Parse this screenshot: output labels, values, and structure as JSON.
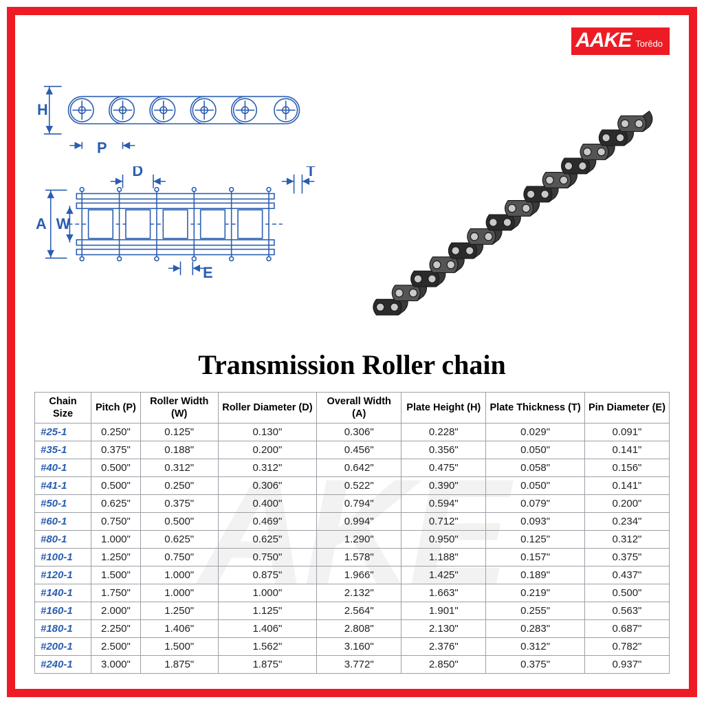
{
  "brand": {
    "name": "AAKE",
    "subname": "Torēdo",
    "logo_bg": "#ed1c24",
    "logo_fg": "#ffffff"
  },
  "frame_border_color": "#ed1c24",
  "title": "Transmission Roller chain",
  "diagram": {
    "stroke": "#2a5db0",
    "labels": {
      "H": "H",
      "P": "P",
      "D": "D",
      "T": "T",
      "A": "A",
      "W": "W",
      "E": "E"
    },
    "label_font_size": 22,
    "label_font_weight": "bold"
  },
  "watermark": {
    "text": "AKE",
    "color": "rgba(0,0,0,0.05)",
    "font_size": 220
  },
  "table": {
    "border_color": "#9aa0a6",
    "header_color": "#000000",
    "chain_size_color": "#2a5db0",
    "value_color": "#222222",
    "font_size": 15,
    "columns": [
      {
        "key": "size",
        "label": "Chain Size"
      },
      {
        "key": "p",
        "label": "Pitch (P)"
      },
      {
        "key": "w",
        "label": "Roller Width (W)"
      },
      {
        "key": "d",
        "label": "Roller Diameter (D)"
      },
      {
        "key": "a",
        "label": "Overall Width (A)"
      },
      {
        "key": "h",
        "label": "Plate Height (H)"
      },
      {
        "key": "t",
        "label": "Plate Thickness (T)"
      },
      {
        "key": "e",
        "label": "Pin Diameter (E)"
      }
    ],
    "rows": [
      {
        "size": "#25-1",
        "p": "0.250\"",
        "w": "0.125\"",
        "d": "0.130\"",
        "a": "0.306\"",
        "h": "0.228\"",
        "t": "0.029\"",
        "e": "0.091\""
      },
      {
        "size": "#35-1",
        "p": "0.375\"",
        "w": "0.188\"",
        "d": "0.200\"",
        "a": "0.456\"",
        "h": "0.356\"",
        "t": "0.050\"",
        "e": "0.141\""
      },
      {
        "size": "#40-1",
        "p": "0.500\"",
        "w": "0.312\"",
        "d": "0.312\"",
        "a": "0.642\"",
        "h": "0.475\"",
        "t": "0.058\"",
        "e": "0.156\""
      },
      {
        "size": "#41-1",
        "p": "0.500\"",
        "w": "0.250\"",
        "d": "0.306\"",
        "a": "0.522\"",
        "h": "0.390\"",
        "t": "0.050\"",
        "e": "0.141\""
      },
      {
        "size": "#50-1",
        "p": "0.625\"",
        "w": "0.375\"",
        "d": "0.400\"",
        "a": "0.794\"",
        "h": "0.594\"",
        "t": "0.079\"",
        "e": "0.200\""
      },
      {
        "size": "#60-1",
        "p": "0.750\"",
        "w": "0.500\"",
        "d": "0.469\"",
        "a": "0.994\"",
        "h": "0.712\"",
        "t": "0.093\"",
        "e": "0.234\""
      },
      {
        "size": "#80-1",
        "p": "1.000\"",
        "w": "0.625\"",
        "d": "0.625\"",
        "a": "1.290\"",
        "h": "0.950\"",
        "t": "0.125\"",
        "e": "0.312\""
      },
      {
        "size": "#100-1",
        "p": "1.250\"",
        "w": "0.750\"",
        "d": "0.750\"",
        "a": "1.578\"",
        "h": "1.188\"",
        "t": "0.157\"",
        "e": "0.375\""
      },
      {
        "size": "#120-1",
        "p": "1.500\"",
        "w": "1.000\"",
        "d": "0.875\"",
        "a": "1.966\"",
        "h": "1.425\"",
        "t": "0.189\"",
        "e": "0.437\""
      },
      {
        "size": "#140-1",
        "p": "1.750\"",
        "w": "1.000\"",
        "d": "1.000\"",
        "a": "2.132\"",
        "h": "1.663\"",
        "t": "0.219\"",
        "e": "0.500\""
      },
      {
        "size": "#160-1",
        "p": "2.000\"",
        "w": "1.250\"",
        "d": "1.125\"",
        "a": "2.564\"",
        "h": "1.901\"",
        "t": "0.255\"",
        "e": "0.563\""
      },
      {
        "size": "#180-1",
        "p": "2.250\"",
        "w": "1.406\"",
        "d": "1.406\"",
        "a": "2.808\"",
        "h": "2.130\"",
        "t": "0.283\"",
        "e": "0.687\""
      },
      {
        "size": "#200-1",
        "p": "2.500\"",
        "w": "1.500\"",
        "d": "1.562\"",
        "a": "3.160\"",
        "h": "2.376\"",
        "t": "0.312\"",
        "e": "0.782\""
      },
      {
        "size": "#240-1",
        "p": "3.000\"",
        "w": "1.875\"",
        "d": "1.875\"",
        "a": "3.772\"",
        "h": "2.850\"",
        "t": "0.375\"",
        "e": "0.937\""
      }
    ]
  },
  "chain_photo": {
    "link_count": 14,
    "color_dark": "#2b2b2b",
    "color_mid": "#555",
    "color_highlight": "#c9c9c9"
  }
}
